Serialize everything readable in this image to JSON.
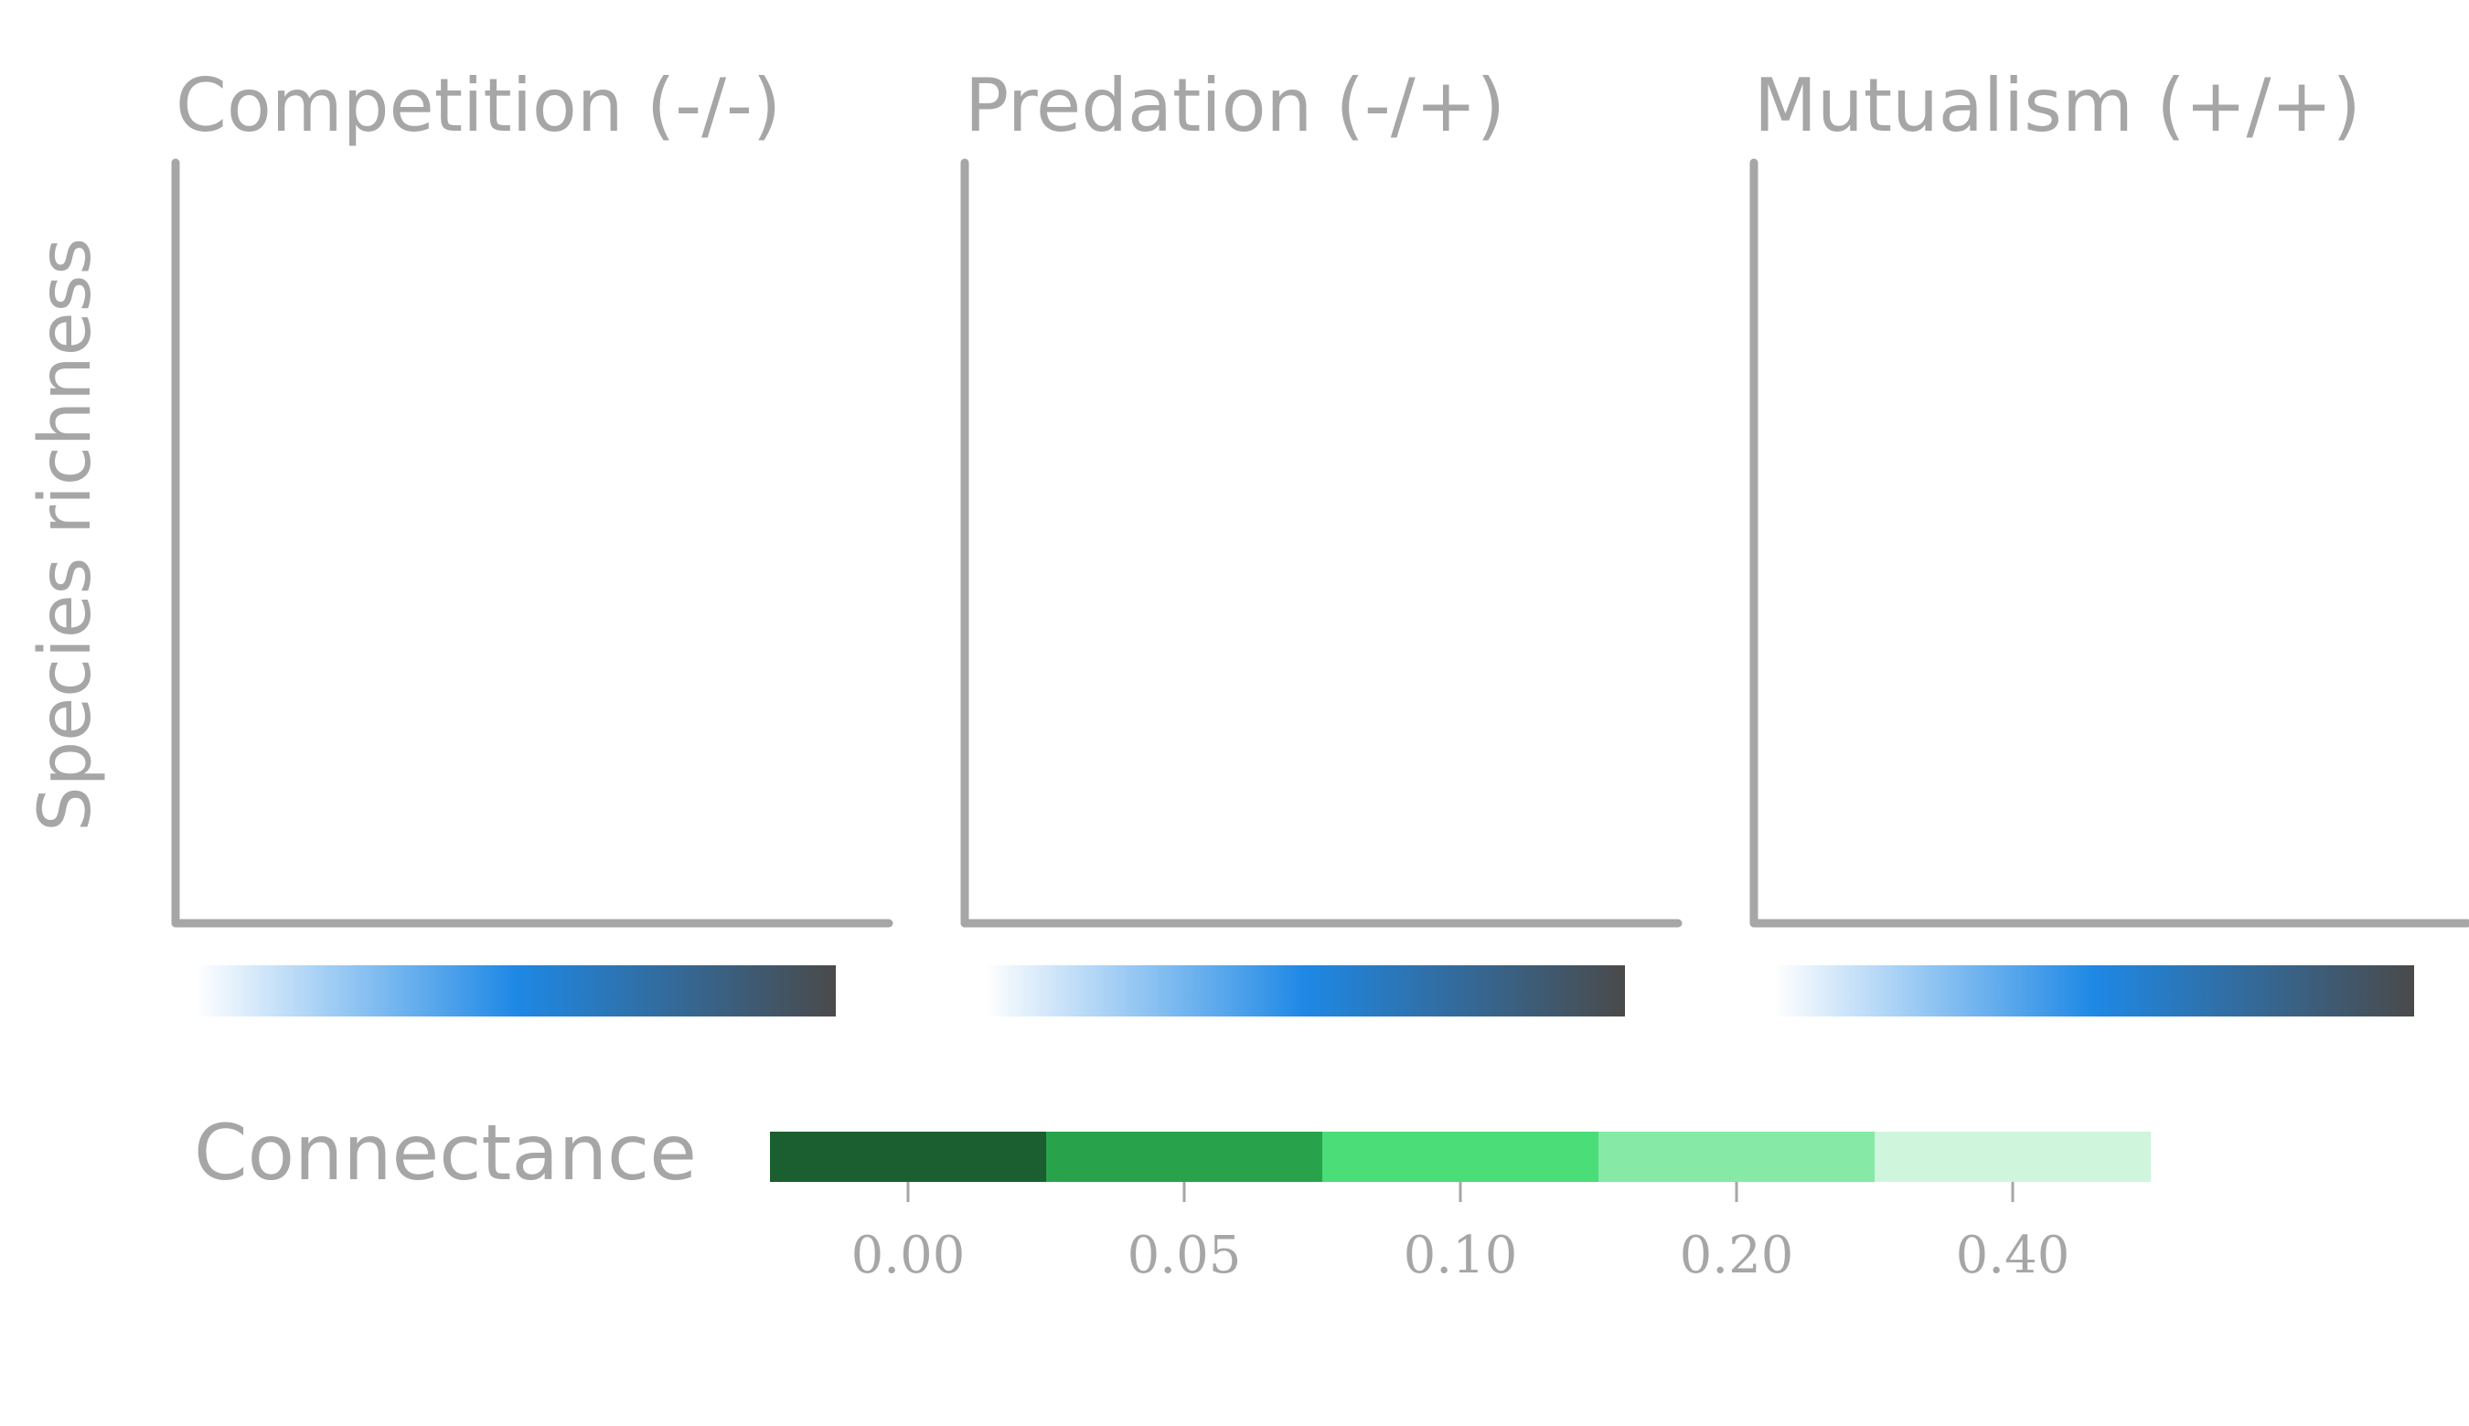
{
  "chart_data": {
    "type": "line",
    "ylabel": "Species richness",
    "panels": [
      {
        "title": "Competition (-/-)",
        "series": []
      },
      {
        "title": "Predation (-/+)",
        "series": []
      },
      {
        "title": "Mutualism (+/+)",
        "series": []
      }
    ],
    "gradient_colors": [
      "#ffffff",
      "#1e88e5",
      "#4a4a4a"
    ],
    "legend": {
      "title": "Connectance",
      "placement": "bottom",
      "entries": [
        {
          "label": "0.00",
          "color": "#1b5e2f"
        },
        {
          "label": "0.05",
          "color": "#29a24c"
        },
        {
          "label": "0.10",
          "color": "#4bdd78"
        },
        {
          "label": "0.20",
          "color": "#86eaa6"
        },
        {
          "label": "0.40",
          "color": "#cff5dc"
        }
      ]
    },
    "axis_color": "#a6a6a6",
    "text_color": "#a6a6a6"
  }
}
